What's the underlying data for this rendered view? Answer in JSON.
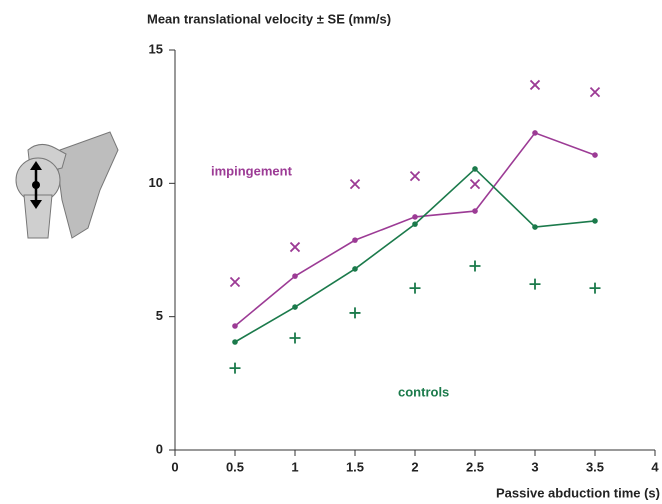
{
  "chart_data": {
    "type": "line",
    "title": "Mean translational velocity ± SE (mm/s)",
    "x_label": "Passive abduction time (s)",
    "x": [
      0.5,
      1,
      1.5,
      2,
      2.5,
      3,
      3.5
    ],
    "series": [
      {
        "name": "impingement",
        "color": "#9c3b95",
        "marker": "x",
        "values": [
          4.65,
          6.52,
          7.87,
          8.74,
          8.96,
          11.89,
          11.06
        ],
        "se_bound_values": [
          6.3,
          7.61,
          9.97,
          10.27,
          9.97,
          13.69,
          13.42
        ]
      },
      {
        "name": "controls",
        "color": "#1b7a4b",
        "marker": "+",
        "values": [
          4.05,
          5.36,
          6.79,
          8.47,
          10.54,
          8.36,
          8.59
        ],
        "se_bound_values": [
          3.07,
          4.2,
          5.14,
          6.07,
          6.9,
          6.22,
          6.07
        ]
      }
    ],
    "xlim": [
      0,
      4
    ],
    "xticks": [
      0,
      0.5,
      1,
      1.5,
      2,
      2.5,
      3,
      3.5,
      4
    ],
    "ylim": [
      0,
      15
    ],
    "yticks": [
      0,
      5,
      10,
      15
    ],
    "grid": false
  }
}
